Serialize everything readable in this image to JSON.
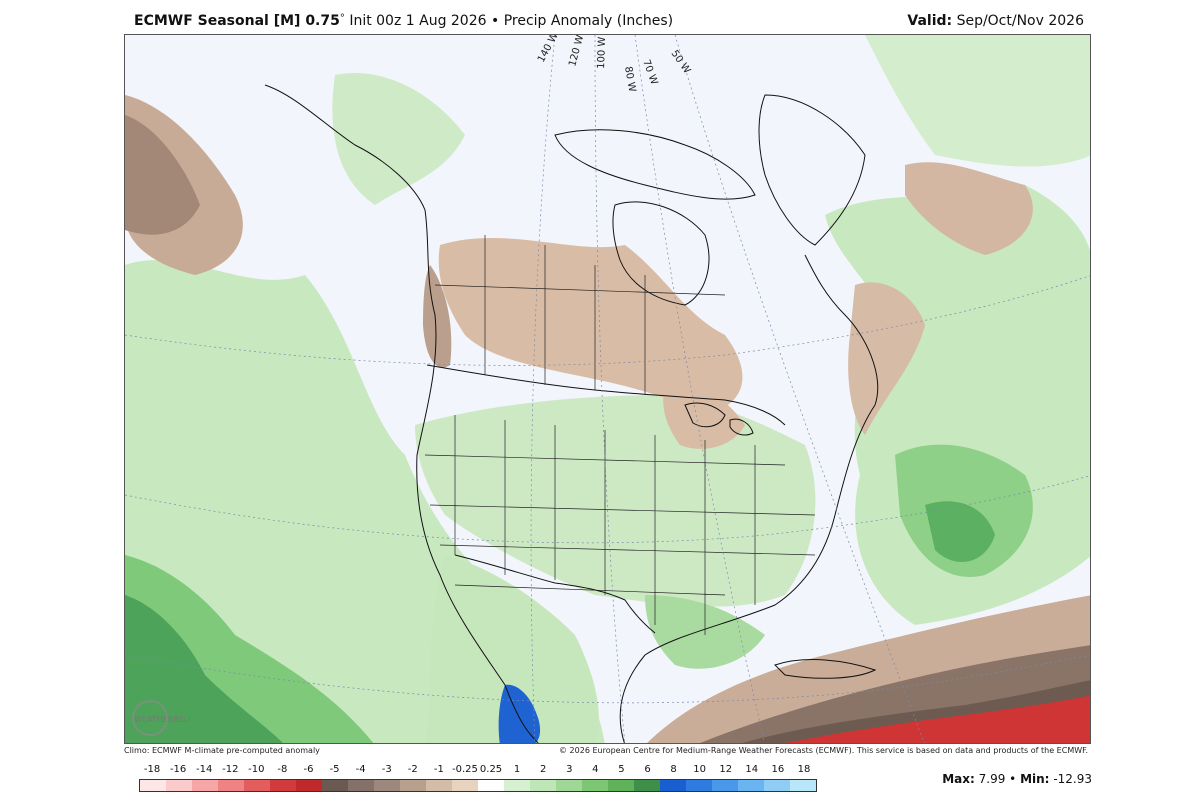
{
  "header": {
    "model": "ECMWF Seasonal [M] 0.75",
    "degree": "°",
    "init": "Init 00z 1 Aug 2026",
    "bullet": "•",
    "product": "Precip Anomaly (Inches)",
    "valid_label": "Valid:",
    "valid_value": "Sep/Oct/Nov 2026"
  },
  "map": {
    "longitude_labels": [
      "140 W",
      "120 W",
      "100 W",
      "80 W",
      "70 W",
      "50 W"
    ]
  },
  "footer": {
    "climo": "Climo: ECMWF M-climate pre-computed anomaly",
    "copyright": "© 2026 European Centre for Medium-Range Weather Forecasts (ECMWF). This service is based on data and products of the ECMWF."
  },
  "logo": {
    "name": "weatherbell-logo",
    "text": "WEATHERBELL"
  },
  "colorbar": {
    "labels": [
      "-18",
      "-16",
      "-14",
      "-12",
      "-10",
      "-8",
      "-6",
      "-5",
      "-4",
      "-3",
      "-2",
      "-1",
      "-0.25",
      "0.25",
      "1",
      "2",
      "3",
      "4",
      "5",
      "6",
      "8",
      "10",
      "12",
      "14",
      "16",
      "18"
    ],
    "colors": [
      "#fde6e6",
      "#fbcaca",
      "#f6a6a6",
      "#ef8282",
      "#e35d5d",
      "#d23b3b",
      "#c02a2a",
      "#6b5a52",
      "#84726a",
      "#9c887c",
      "#b8a08f",
      "#d3bca8",
      "#e6d3c0",
      "#ffffff",
      "#d7f0d2",
      "#bfe6b6",
      "#9fd896",
      "#7cc674",
      "#5fb25a",
      "#3e8f47",
      "#1a5fd1",
      "#2f7ce0",
      "#4a98ea",
      "#69b4f1",
      "#8fcdf5",
      "#b7e7f8"
    ]
  },
  "stats": {
    "max_label": "Max:",
    "max_value": "7.99",
    "separator": "•",
    "min_label": "Min:",
    "min_value": "-12.93"
  }
}
